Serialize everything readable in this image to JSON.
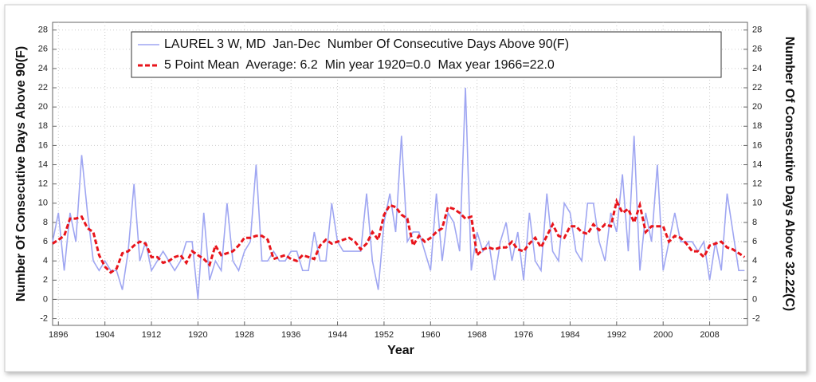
{
  "chart_data": {
    "type": "line",
    "xlabel": "Year",
    "ylabel": "Number Of Consecutive Days Above 90(F)",
    "y2label": "Number Of Consecutive Days Above 32.22(C)",
    "x": [
      1895,
      1896,
      1897,
      1898,
      1899,
      1900,
      1901,
      1902,
      1903,
      1904,
      1905,
      1906,
      1907,
      1908,
      1909,
      1910,
      1911,
      1912,
      1913,
      1914,
      1915,
      1916,
      1917,
      1918,
      1919,
      1920,
      1921,
      1922,
      1923,
      1924,
      1925,
      1926,
      1927,
      1928,
      1929,
      1930,
      1931,
      1932,
      1933,
      1934,
      1935,
      1936,
      1937,
      1938,
      1939,
      1940,
      1941,
      1942,
      1943,
      1944,
      1945,
      1946,
      1947,
      1948,
      1949,
      1950,
      1951,
      1952,
      1953,
      1954,
      1955,
      1956,
      1957,
      1958,
      1959,
      1960,
      1961,
      1962,
      1963,
      1964,
      1965,
      1966,
      1967,
      1968,
      1969,
      1970,
      1971,
      1972,
      1973,
      1974,
      1975,
      1976,
      1977,
      1978,
      1979,
      1980,
      1981,
      1982,
      1983,
      1984,
      1985,
      1986,
      1987,
      1988,
      1989,
      1990,
      1991,
      1992,
      1993,
      1994,
      1995,
      1996,
      1997,
      1998,
      1999,
      2000,
      2001,
      2002,
      2003,
      2004,
      2005,
      2006,
      2007,
      2008,
      2009,
      2010,
      2011,
      2012,
      2013,
      2014
    ],
    "series": [
      {
        "name": "LAUREL 3 W, MD  Jan-Dec  Number Of Consecutive Days Above 90(F)",
        "color": "#9fa6f2",
        "dash": false,
        "values": [
          6,
          9,
          3,
          9,
          6,
          15,
          9,
          4,
          3,
          4,
          3,
          3,
          1,
          5,
          12,
          4,
          6,
          3,
          4,
          5,
          4,
          3,
          4,
          6,
          6,
          0,
          9,
          2,
          4,
          3,
          10,
          4,
          3,
          5,
          6,
          14,
          4,
          4,
          5,
          4,
          4,
          5,
          5,
          3,
          3,
          7,
          4,
          4,
          10,
          6,
          5,
          5,
          5,
          5,
          11,
          4,
          1,
          8,
          11,
          7,
          17,
          6,
          7,
          7,
          5,
          3,
          11,
          4,
          9,
          8,
          5,
          22,
          3,
          7,
          5,
          6,
          2,
          6,
          8,
          4,
          7,
          2,
          9,
          4,
          3,
          11,
          5,
          4,
          10,
          9,
          5,
          4,
          10,
          10,
          6,
          4,
          9,
          7,
          13,
          5,
          17,
          3,
          9,
          6,
          14,
          3,
          6,
          9,
          6,
          6,
          6,
          5,
          6,
          2,
          6,
          3,
          11,
          7,
          3,
          3
        ]
      },
      {
        "name": "5 Point Mean  Average: 6.2  Min year 1920=0.0  Max year 1966=22.0",
        "color": "#e8141b",
        "dash": true,
        "values": [
          5.8,
          6.2,
          6.6,
          8.4,
          8.4,
          8.6,
          7.4,
          7.0,
          4.6,
          3.4,
          2.8,
          3.2,
          4.8,
          5.0,
          5.6,
          6.0,
          5.8,
          4.4,
          4.4,
          3.8,
          4.0,
          4.4,
          4.6,
          3.8,
          5.0,
          4.6,
          4.2,
          3.6,
          5.6,
          4.6,
          4.8,
          5.0,
          5.6,
          6.4,
          6.4,
          6.6,
          6.6,
          6.2,
          4.2,
          4.4,
          4.6,
          4.2,
          4.0,
          4.6,
          4.4,
          4.2,
          5.6,
          6.2,
          5.8,
          6.0,
          6.2,
          6.4,
          6.0,
          5.2,
          5.8,
          7.0,
          6.2,
          8.8,
          9.8,
          9.6,
          8.8,
          8.4,
          5.6,
          6.6,
          6.0,
          6.4,
          7.0,
          7.4,
          9.6,
          9.4,
          9.0,
          8.4,
          8.6,
          4.6,
          5.2,
          5.4,
          5.2,
          5.4,
          5.4,
          6.0,
          5.2,
          5.0,
          5.8,
          6.4,
          5.4,
          6.6,
          7.8,
          6.6,
          6.4,
          7.6,
          7.6,
          7.0,
          6.8,
          7.8,
          7.2,
          7.8,
          7.6,
          10.2,
          9.0,
          9.4,
          8.0,
          9.8,
          7.0,
          7.6,
          7.6,
          7.6,
          6.0,
          6.6,
          6.4,
          5.8,
          5.0,
          5.0,
          4.4,
          5.6,
          5.8,
          6.0,
          5.4,
          5.2,
          4.8,
          4.4
        ]
      }
    ],
    "xlim": [
      1895,
      2014.5
    ],
    "xticks": [
      1896,
      1904,
      1912,
      1920,
      1928,
      1936,
      1944,
      1952,
      1960,
      1968,
      1976,
      1984,
      1992,
      2000,
      2008
    ],
    "ylim": [
      -2.7,
      28.8
    ],
    "yticks": [
      -2,
      0,
      2,
      4,
      6,
      8,
      10,
      12,
      14,
      16,
      18,
      20,
      22,
      24,
      26,
      28
    ],
    "y2lim": [
      -2.7,
      28.8
    ],
    "y2ticks": [
      -2,
      0,
      2,
      4,
      6,
      8,
      10,
      12,
      14,
      16,
      18,
      20,
      22,
      24,
      26,
      28
    ],
    "grid": true,
    "legend": "top"
  }
}
